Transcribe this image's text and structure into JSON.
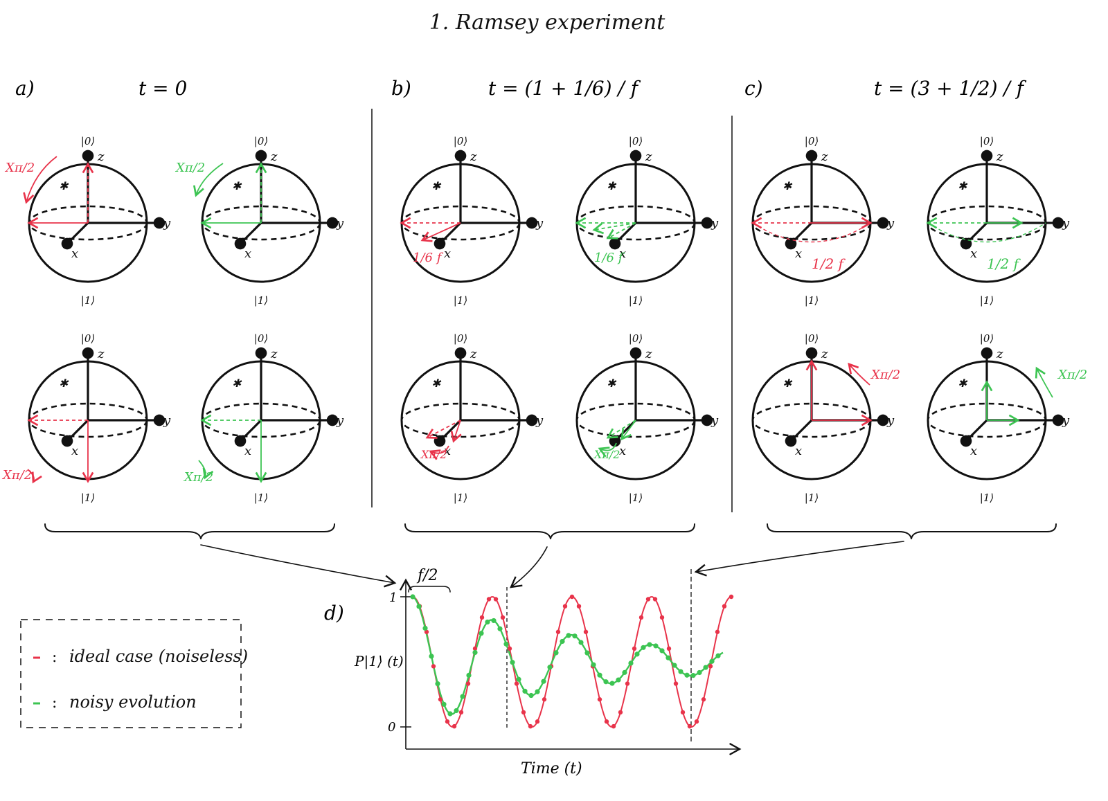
{
  "title": "1. Ramsey experiment",
  "colors": {
    "ideal": "#e8334a",
    "noisy": "#3cc452",
    "ink": "#111111"
  },
  "panels": [
    {
      "letter": "a)",
      "time_label": "t = 0"
    },
    {
      "letter": "b)",
      "time_label": "t = (1 + 1/6) / f"
    },
    {
      "letter": "c)",
      "time_label": "t = (3 + 1/2) / f"
    }
  ],
  "sphere_labels": {
    "top": "|0⟩",
    "bottom": "|1⟩",
    "z": "z",
    "y": "y",
    "x": "x"
  },
  "annotations": {
    "xpi2": "Xπ/2",
    "phase_b": "1/6 f",
    "phase_c": "1/2 f"
  },
  "plot": {
    "letter": "d)",
    "ylabel": "P|1⟩ (t)",
    "xlabel": "Time (t)",
    "tick_one": "1",
    "tick_zero": "0",
    "period_label": "f/2"
  },
  "legend": {
    "items": [
      {
        "label": "ideal case (noiseless)",
        "color": "#e8334a"
      },
      {
        "label": "noisy evolution",
        "color": "#3cc452"
      }
    ]
  }
}
